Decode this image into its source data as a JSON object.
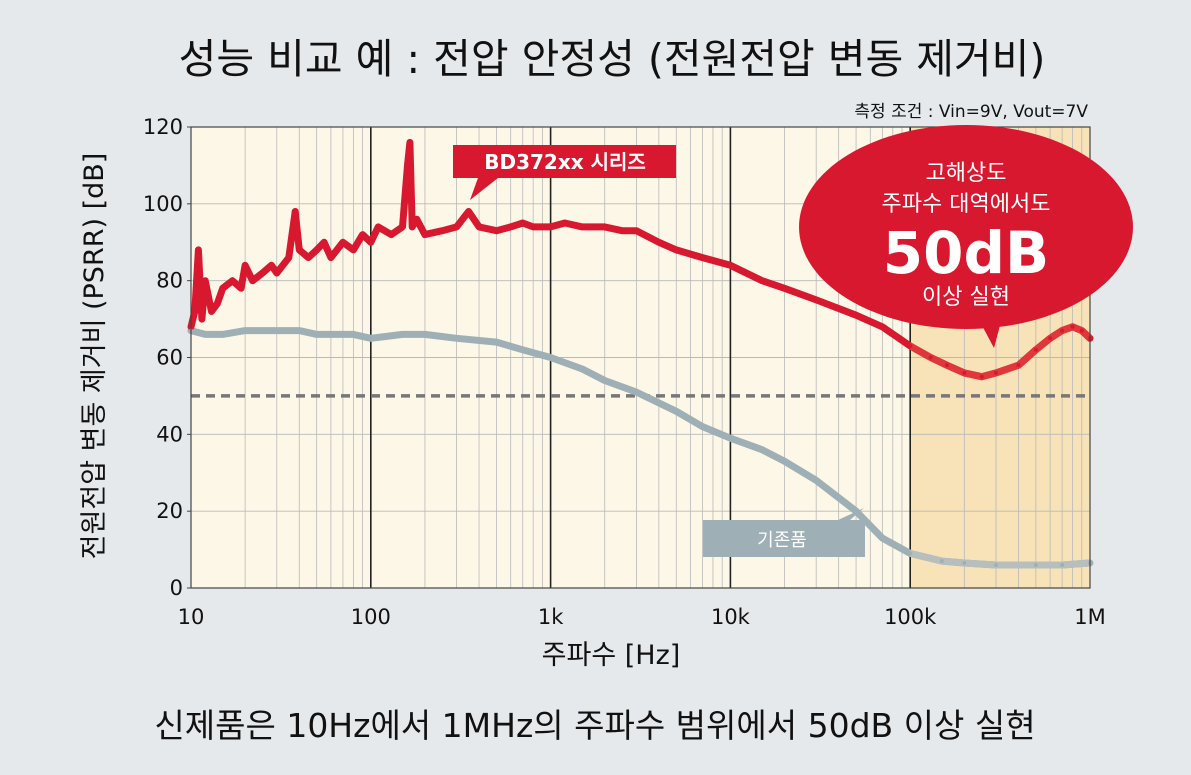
{
  "title": "성능 비교 예 : 전압 안정성 (전원전압 변동 제거비)",
  "condition": "측정 조건 : Vin=9V, Vout=7V",
  "footer": "신제품은 10Hz에서 1MHz의 주파수 범위에서 50dB 이상 실현",
  "callout": {
    "line1": "고해상도",
    "line2": "주파수 대역에서도",
    "big": "50dB",
    "line3": "이상 실현"
  },
  "colors": {
    "new_product": "#d8182f",
    "highlight_red": "#e0383a",
    "old_product": "#9eb0b5",
    "highlight_band": "#f8e2b8",
    "plot_bg": "#fdf7e8",
    "callout_bg": "#d8182f",
    "reference_line": "#777777"
  },
  "chart_data": {
    "type": "line",
    "xscale": "log",
    "xlabel": "주파수 [Hz]",
    "ylabel": "전원전압 변동 제거비 (PSRR) [dB]",
    "xlim": [
      10,
      1000000
    ],
    "ylim": [
      0,
      120
    ],
    "x_ticks": [
      10,
      100,
      1000,
      10000,
      100000,
      1000000
    ],
    "x_tick_labels": [
      "10",
      "100",
      "1k",
      "10k",
      "100k",
      "1M"
    ],
    "y_ticks": [
      0,
      20,
      40,
      60,
      80,
      100,
      120
    ],
    "y_tick_labels": [
      "0",
      "20",
      "40",
      "60",
      "80",
      "100",
      "120"
    ],
    "grid": true,
    "highlight_range": [
      100000,
      1000000
    ],
    "reference_line": 50,
    "series": [
      {
        "name": "BD372xx 시리즈",
        "x": [
          10,
          10.5,
          11,
          11.5,
          12,
          13,
          14,
          15,
          17,
          19,
          20,
          22,
          25,
          28,
          30,
          35,
          38,
          40,
          45,
          50,
          55,
          60,
          70,
          80,
          90,
          100,
          110,
          130,
          150,
          160,
          165,
          170,
          180,
          200,
          250,
          300,
          350,
          400,
          500,
          600,
          700,
          800,
          1000,
          1200,
          1500,
          2000,
          2500,
          3000,
          4000,
          5000,
          7000,
          10000,
          15000,
          20000,
          30000,
          50000,
          70000,
          100000,
          130000,
          160000,
          200000,
          250000,
          300000,
          400000,
          500000,
          600000,
          700000,
          800000,
          900000,
          1000000
        ],
        "y": [
          68,
          72,
          88,
          70,
          80,
          72,
          74,
          78,
          80,
          78,
          84,
          80,
          82,
          84,
          82,
          86,
          98,
          88,
          86,
          88,
          90,
          86,
          90,
          88,
          92,
          90,
          94,
          92,
          94,
          110,
          116,
          94,
          96,
          92,
          93,
          94,
          98,
          94,
          93,
          94,
          95,
          94,
          94,
          95,
          94,
          94,
          93,
          93,
          90,
          88,
          86,
          84,
          80,
          78,
          75,
          71,
          68,
          63,
          60,
          58,
          56,
          55,
          56,
          58,
          62,
          65,
          67,
          68,
          67,
          65
        ]
      },
      {
        "name": "기존품",
        "x": [
          10,
          12,
          15,
          20,
          25,
          30,
          40,
          50,
          60,
          80,
          100,
          150,
          200,
          300,
          500,
          700,
          1000,
          1500,
          2000,
          3000,
          5000,
          7000,
          10000,
          15000,
          20000,
          30000,
          50000,
          70000,
          100000,
          150000,
          200000,
          300000,
          500000,
          700000,
          1000000
        ],
        "y": [
          67,
          66,
          66,
          67,
          67,
          67,
          67,
          66,
          66,
          66,
          65,
          66,
          66,
          65,
          64,
          62,
          60,
          57,
          54,
          51,
          46,
          42,
          39,
          36,
          33,
          28,
          20,
          13,
          9,
          7,
          6.5,
          6,
          6,
          6,
          6.5
        ]
      }
    ]
  }
}
